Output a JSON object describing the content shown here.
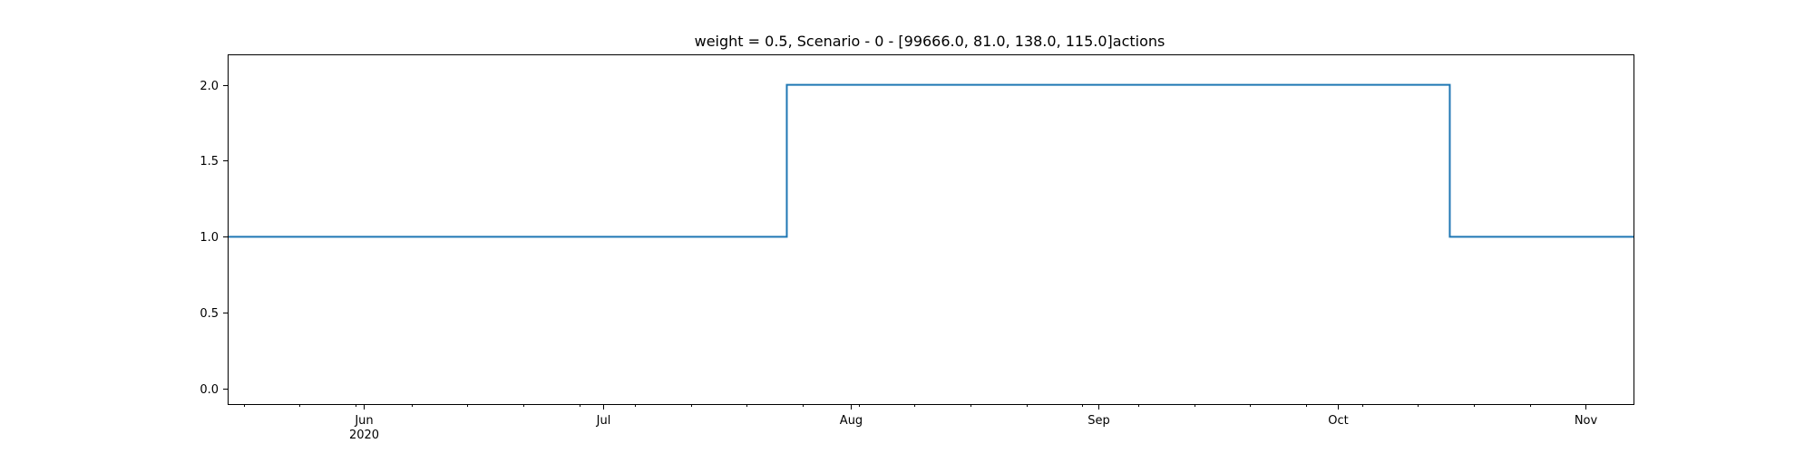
{
  "chart_data": {
    "type": "line",
    "title": "weight = 0.5, Scenario - 0 - [99666.0, 81.0, 138.0, 115.0]actions",
    "xlabel": "",
    "ylabel": "",
    "x_axis_type": "date",
    "xlim": [
      "2020-05-15",
      "2020-11-07"
    ],
    "ylim": [
      -0.1,
      2.2
    ],
    "step": "post",
    "series": [
      {
        "x": [
          "2020-05-15",
          "2020-07-24",
          "2020-10-15",
          "2020-11-07"
        ],
        "values": [
          1.0,
          2.0,
          1.0,
          1.0
        ],
        "color": "#1f77b4"
      }
    ],
    "y_ticks": [
      {
        "value": 0.0,
        "label": "0.0"
      },
      {
        "value": 0.5,
        "label": "0.5"
      },
      {
        "value": 1.0,
        "label": "1.0"
      },
      {
        "value": 1.5,
        "label": "1.5"
      },
      {
        "value": 2.0,
        "label": "2.0"
      }
    ],
    "x_major_ticks": [
      {
        "date": "2020-06-01",
        "label": "Jun",
        "sublabel": "2020"
      },
      {
        "date": "2020-07-01",
        "label": "Jul",
        "sublabel": ""
      },
      {
        "date": "2020-08-01",
        "label": "Aug",
        "sublabel": ""
      },
      {
        "date": "2020-09-01",
        "label": "Sep",
        "sublabel": ""
      },
      {
        "date": "2020-10-01",
        "label": "Oct",
        "sublabel": ""
      },
      {
        "date": "2020-11-01",
        "label": "Nov",
        "sublabel": ""
      }
    ],
    "x_minor_ticks": [
      "2020-05-17",
      "2020-05-24",
      "2020-05-31",
      "2020-06-07",
      "2020-06-14",
      "2020-06-21",
      "2020-06-28",
      "2020-07-05",
      "2020-07-12",
      "2020-07-19",
      "2020-07-26",
      "2020-08-02",
      "2020-08-09",
      "2020-08-16",
      "2020-08-23",
      "2020-08-30",
      "2020-09-06",
      "2020-09-13",
      "2020-09-20",
      "2020-09-27",
      "2020-10-04",
      "2020-10-11",
      "2020-10-18",
      "2020-10-25",
      "2020-11-01"
    ],
    "grid": false,
    "legend": "none"
  }
}
